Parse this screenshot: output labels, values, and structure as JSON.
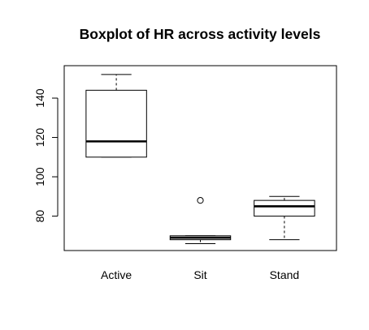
{
  "chart_data": {
    "type": "boxplot",
    "title": "Boxplot of HR across activity levels",
    "xlabel": "",
    "ylabel": "",
    "categories": [
      "Active",
      "Sit",
      "Stand"
    ],
    "boxes": [
      {
        "name": "Active",
        "whisker_low": 110,
        "q1": 110,
        "median": 118,
        "q3": 144,
        "whisker_high": 152,
        "outliers": []
      },
      {
        "name": "Sit",
        "whisker_low": 66,
        "q1": 68,
        "median": 69,
        "q3": 70,
        "whisker_high": 70,
        "outliers": [
          88
        ]
      },
      {
        "name": "Stand",
        "whisker_low": 68,
        "q1": 80,
        "median": 85,
        "q3": 88,
        "whisker_high": 90,
        "outliers": []
      }
    ],
    "yticks": [
      80,
      100,
      120,
      140
    ],
    "ylim": [
      62.5,
      156.5
    ],
    "grid": false,
    "legend": "none"
  }
}
